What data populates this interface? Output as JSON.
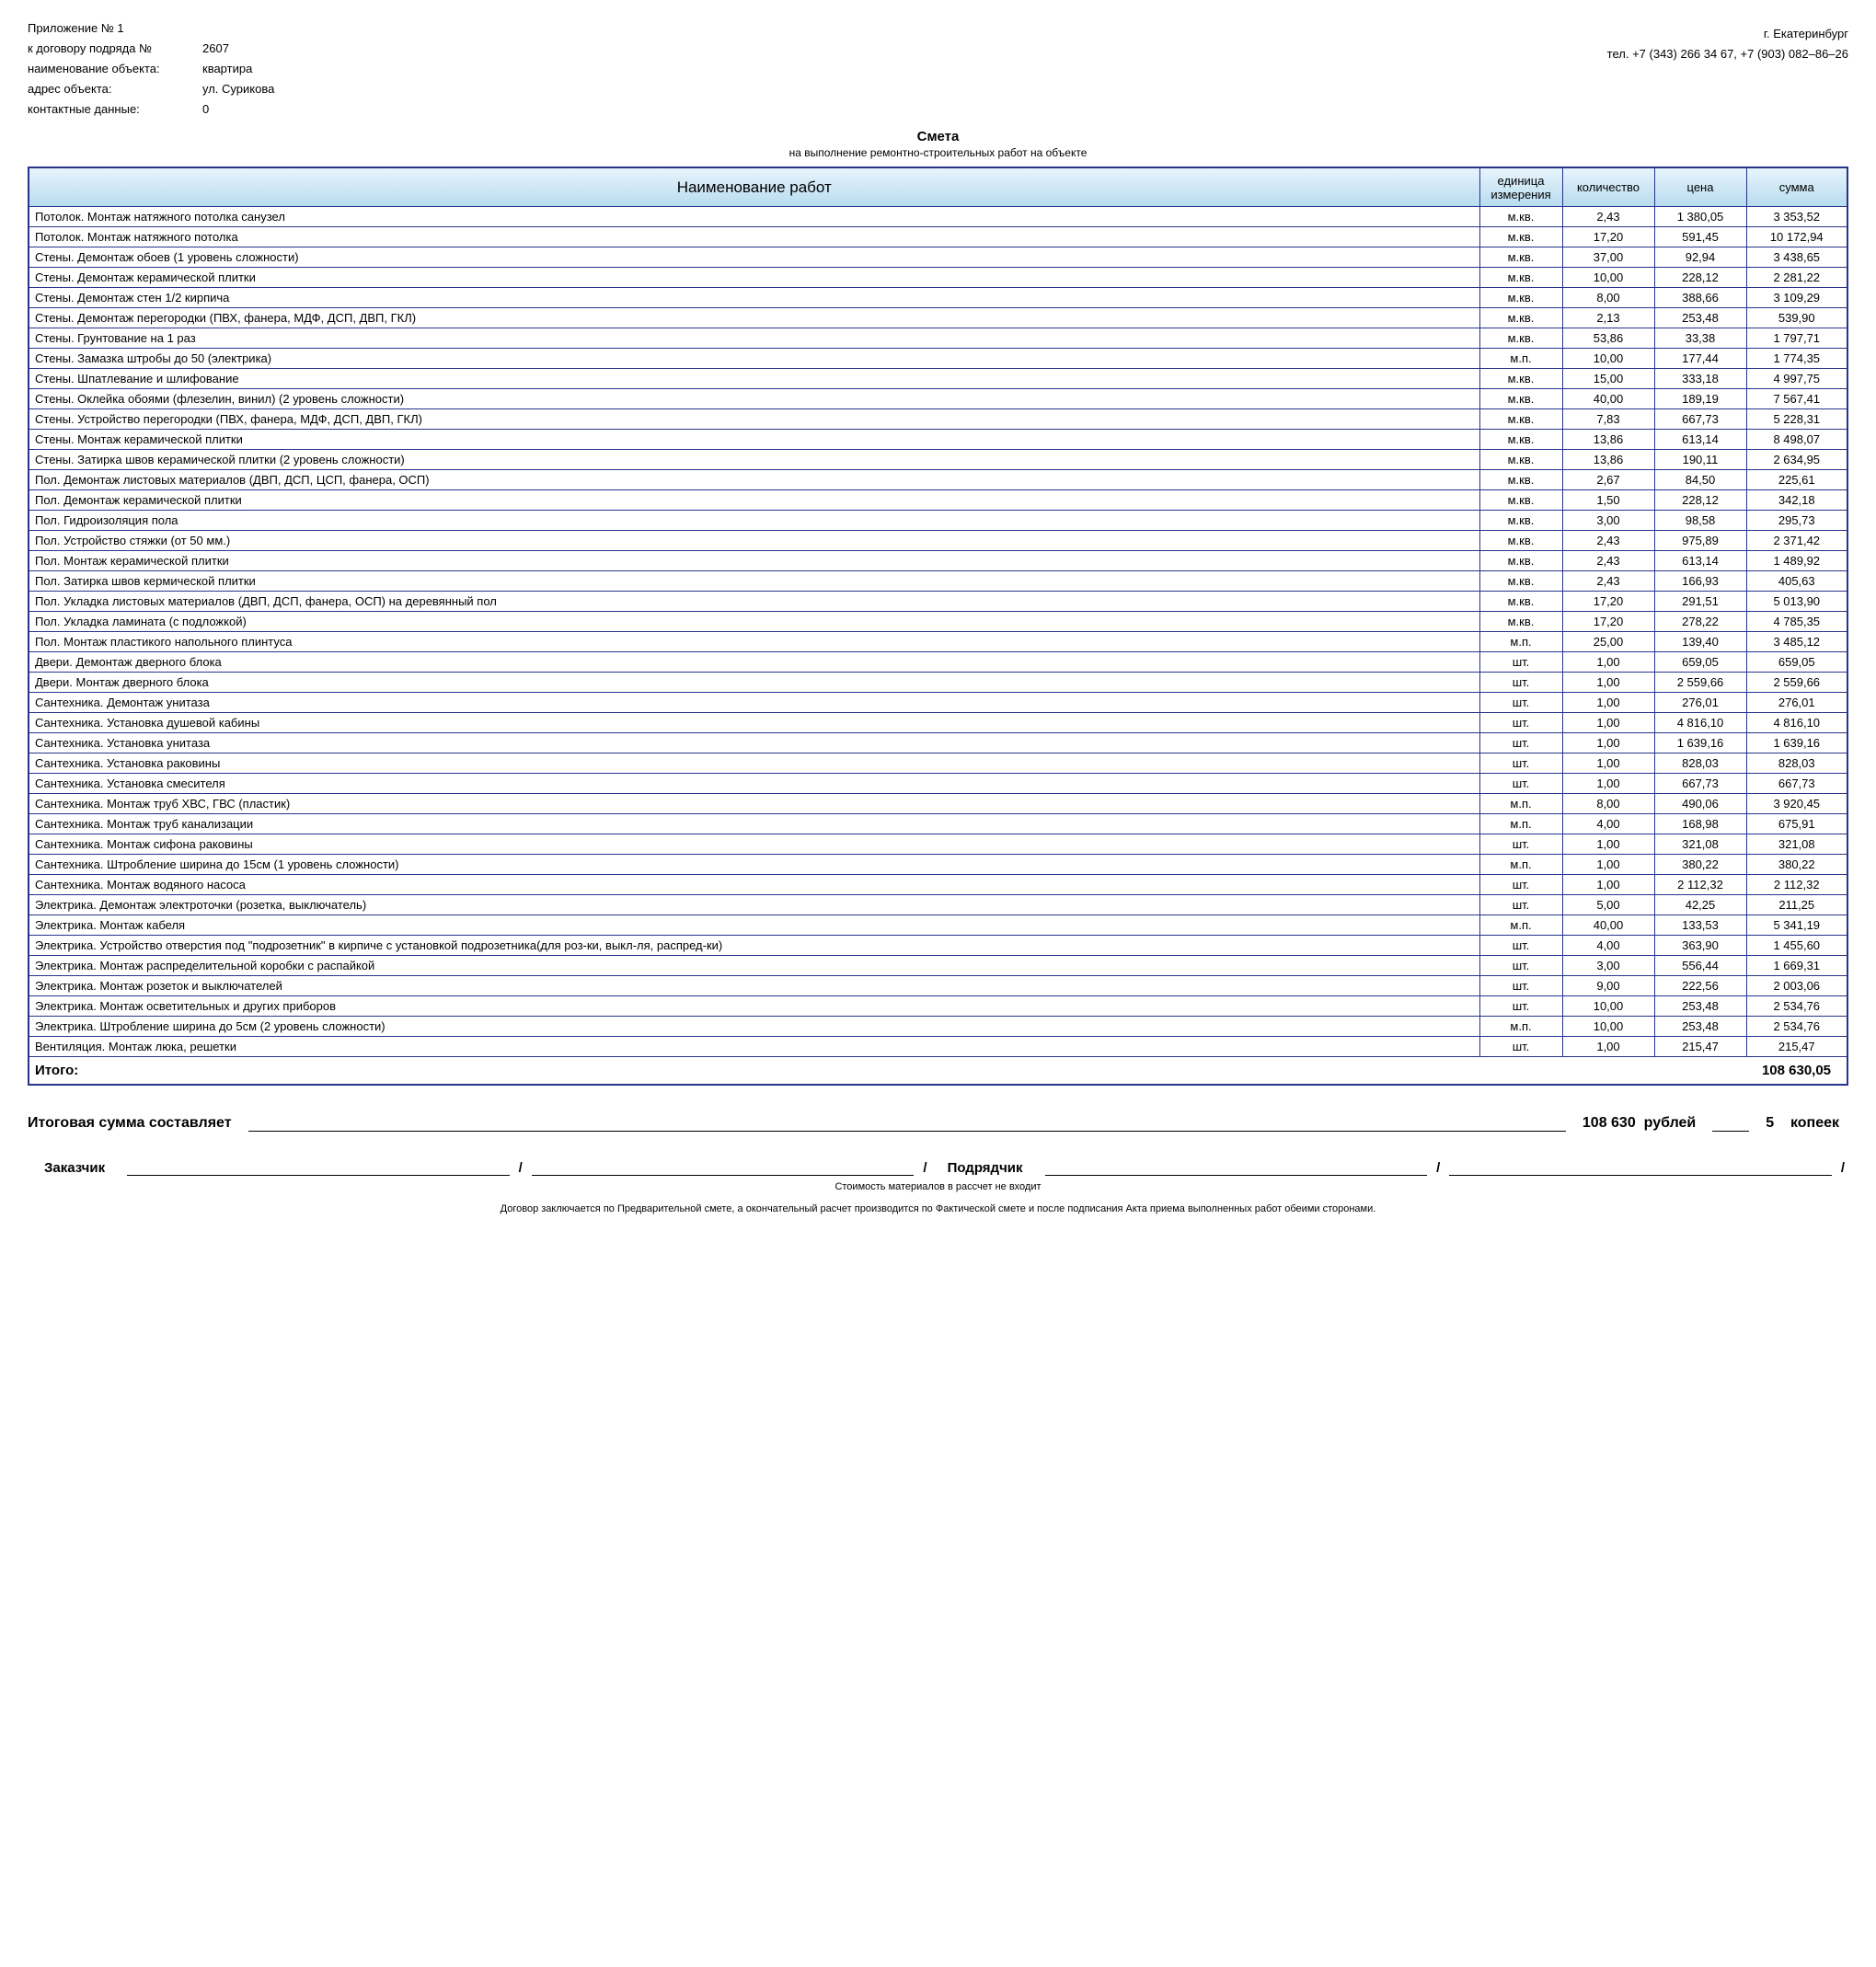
{
  "header": {
    "app_line": "Приложение № 1",
    "contract_lbl": "к договору подряда №",
    "contract_no": "2607",
    "object_lbl": "наименование объекта:",
    "object": "квартира",
    "addr_lbl": "адрес объекта:",
    "addr": "ул. Сурикова",
    "contact_lbl": "контактные данные:",
    "contact": "0",
    "city": "г. Екатеринбург",
    "phones": "тел. +7 (343) 266 34 67, +7 (903) 082–86–26"
  },
  "title": {
    "main": "Смета",
    "sub": "на выполнение ремонтно-строительных работ на объекте"
  },
  "columns": {
    "name": "Наименование работ",
    "unit": "единица измерения",
    "qty": "количество",
    "price": "цена",
    "sum": "сумма"
  },
  "rows": [
    {
      "n": "Потолок. Монтаж натяжного потолка санузел",
      "u": "м.кв.",
      "q": "2,43",
      "p": "1 380,05",
      "s": "3 353,52"
    },
    {
      "n": "Потолок. Монтаж натяжного потолка",
      "u": "м.кв.",
      "q": "17,20",
      "p": "591,45",
      "s": "10 172,94"
    },
    {
      "n": "Стены. Демонтаж обоев (1 уровень сложности)",
      "u": "м.кв.",
      "q": "37,00",
      "p": "92,94",
      "s": "3 438,65"
    },
    {
      "n": "Стены. Демонтаж керамической плитки",
      "u": "м.кв.",
      "q": "10,00",
      "p": "228,12",
      "s": "2 281,22"
    },
    {
      "n": "Стены. Демонтаж стен   1/2 кирпича",
      "u": "м.кв.",
      "q": "8,00",
      "p": "388,66",
      "s": "3 109,29"
    },
    {
      "n": "Стены. Демонтаж перегородки (ПВХ, фанера, МДФ, ДСП, ДВП, ГКЛ)",
      "u": "м.кв.",
      "q": "2,13",
      "p": "253,48",
      "s": "539,90"
    },
    {
      "n": "Стены. Грунтование на 1 раз",
      "u": "м.кв.",
      "q": "53,86",
      "p": "33,38",
      "s": "1 797,71"
    },
    {
      "n": "Стены. Замазка штробы до 50 (электрика)",
      "u": "м.п.",
      "q": "10,00",
      "p": "177,44",
      "s": "1 774,35"
    },
    {
      "n": "Стены. Шпатлевание и шлифование",
      "u": "м.кв.",
      "q": "15,00",
      "p": "333,18",
      "s": "4 997,75"
    },
    {
      "n": "Стены. Оклейка обоями (флезелин, винил) (2 уровень сложности)",
      "u": "м.кв.",
      "q": "40,00",
      "p": "189,19",
      "s": "7 567,41"
    },
    {
      "n": "Стены. Устройство перегородки (ПВХ, фанера, МДФ, ДСП, ДВП, ГКЛ)",
      "u": "м.кв.",
      "q": "7,83",
      "p": "667,73",
      "s": "5 228,31"
    },
    {
      "n": "Стены. Монтаж керамической плитки",
      "u": "м.кв.",
      "q": "13,86",
      "p": "613,14",
      "s": "8 498,07"
    },
    {
      "n": "Стены. Затирка швов керамической плитки (2 уровень сложности)",
      "u": "м.кв.",
      "q": "13,86",
      "p": "190,11",
      "s": "2 634,95"
    },
    {
      "n": "Пол. Демонтаж листовых материалов (ДВП, ДСП, ЦСП, фанера, ОСП)",
      "u": "м.кв.",
      "q": "2,67",
      "p": "84,50",
      "s": "225,61"
    },
    {
      "n": "Пол. Демонтаж керамической плитки",
      "u": "м.кв.",
      "q": "1,50",
      "p": "228,12",
      "s": "342,18"
    },
    {
      "n": "Пол. Гидроизоляция пола",
      "u": "м.кв.",
      "q": "3,00",
      "p": "98,58",
      "s": "295,73"
    },
    {
      "n": "Пол. Устройство стяжки (от 50 мм.)",
      "u": "м.кв.",
      "q": "2,43",
      "p": "975,89",
      "s": "2 371,42"
    },
    {
      "n": "Пол. Монтаж керамической плитки",
      "u": "м.кв.",
      "q": "2,43",
      "p": "613,14",
      "s": "1 489,92"
    },
    {
      "n": "Пол. Затирка швов кермической плитки",
      "u": "м.кв.",
      "q": "2,43",
      "p": "166,93",
      "s": "405,63"
    },
    {
      "n": "Пол. Укладка листовых материалов (ДВП, ДСП, фанера, ОСП) на деревянный пол",
      "u": "м.кв.",
      "q": "17,20",
      "p": "291,51",
      "s": "5 013,90"
    },
    {
      "n": "Пол. Укладка ламината (с подложкой)",
      "u": "м.кв.",
      "q": "17,20",
      "p": "278,22",
      "s": "4 785,35"
    },
    {
      "n": "Пол. Монтаж пластикого напольного плинтуса",
      "u": "м.п.",
      "q": "25,00",
      "p": "139,40",
      "s": "3 485,12"
    },
    {
      "n": "Двери. Демонтаж дверного блока",
      "u": "шт.",
      "q": "1,00",
      "p": "659,05",
      "s": "659,05"
    },
    {
      "n": "Двери. Монтаж дверного блока",
      "u": "шт.",
      "q": "1,00",
      "p": "2 559,66",
      "s": "2 559,66"
    },
    {
      "n": "Сантехника. Демонтаж унитаза",
      "u": "шт.",
      "q": "1,00",
      "p": "276,01",
      "s": "276,01"
    },
    {
      "n": "Сантехника. Установка душевой кабины",
      "u": "шт.",
      "q": "1,00",
      "p": "4 816,10",
      "s": "4 816,10"
    },
    {
      "n": "Сантехника. Установка унитаза",
      "u": "шт.",
      "q": "1,00",
      "p": "1 639,16",
      "s": "1 639,16"
    },
    {
      "n": "Сантехника. Установка раковины",
      "u": "шт.",
      "q": "1,00",
      "p": "828,03",
      "s": "828,03"
    },
    {
      "n": "Сантехника. Установка смесителя",
      "u": "шт.",
      "q": "1,00",
      "p": "667,73",
      "s": "667,73"
    },
    {
      "n": "Сантехника. Монтаж труб  ХВС, ГВС (пластик)",
      "u": "м.п.",
      "q": "8,00",
      "p": "490,06",
      "s": "3 920,45"
    },
    {
      "n": "Сантехника. Монтаж труб канализации",
      "u": "м.п.",
      "q": "4,00",
      "p": "168,98",
      "s": "675,91"
    },
    {
      "n": "Сантехника. Монтаж сифона раковины",
      "u": "шт.",
      "q": "1,00",
      "p": "321,08",
      "s": "321,08"
    },
    {
      "n": "Сантехника. Штробление ширина до 15см (1 уровень сложности)",
      "u": "м.п.",
      "q": "1,00",
      "p": "380,22",
      "s": "380,22"
    },
    {
      "n": "Сантехника. Монтаж водяного насоса",
      "u": "шт.",
      "q": "1,00",
      "p": "2 112,32",
      "s": "2 112,32"
    },
    {
      "n": "Электрика. Демонтаж электроточки (розетка, выключатель)",
      "u": "шт.",
      "q": "5,00",
      "p": "42,25",
      "s": "211,25"
    },
    {
      "n": "Электрика. Монтаж кабеля",
      "u": "м.п.",
      "q": "40,00",
      "p": "133,53",
      "s": "5 341,19"
    },
    {
      "n": "Электрика. Устройство отверстия под \"подрозетник\" в кирпиче с установкой подрозетника(для роз-ки, выкл-ля, распред-ки)",
      "u": "шт.",
      "q": "4,00",
      "p": "363,90",
      "s": "1 455,60"
    },
    {
      "n": "Электрика. Монтаж распределительной коробки с распайкой",
      "u": "шт.",
      "q": "3,00",
      "p": "556,44",
      "s": "1 669,31"
    },
    {
      "n": "Электрика. Монтаж розеток и выключателей",
      "u": "шт.",
      "q": "9,00",
      "p": "222,56",
      "s": "2 003,06"
    },
    {
      "n": "Электрика. Монтаж осветительных и других приборов",
      "u": "шт.",
      "q": "10,00",
      "p": "253,48",
      "s": "2 534,76"
    },
    {
      "n": "Электрика. Штробление ширина до 5см (2 уровень сложности)",
      "u": "м.п.",
      "q": "10,00",
      "p": "253,48",
      "s": "2 534,76"
    },
    {
      "n": "Вентиляция. Монтаж люка, решетки",
      "u": "шт.",
      "q": "1,00",
      "p": "215,47",
      "s": "215,47"
    }
  ],
  "total": {
    "label": "Итого:",
    "value": "108 630,05"
  },
  "summary": {
    "label": "Итоговая сумма составляет",
    "rub": "108 630",
    "rub_word": "рублей",
    "kop": "5",
    "kop_word": "копеек"
  },
  "sign": {
    "customer": "Заказчик",
    "contractor": "Подрядчик"
  },
  "foot1": "Стоимость материалов в рассчет не входит",
  "foot2": "Договор заключается по Предварительной смете, а окончательный расчет производится по Фактической смете и после подписания Акта приема выполненных работ обеими сторонами."
}
